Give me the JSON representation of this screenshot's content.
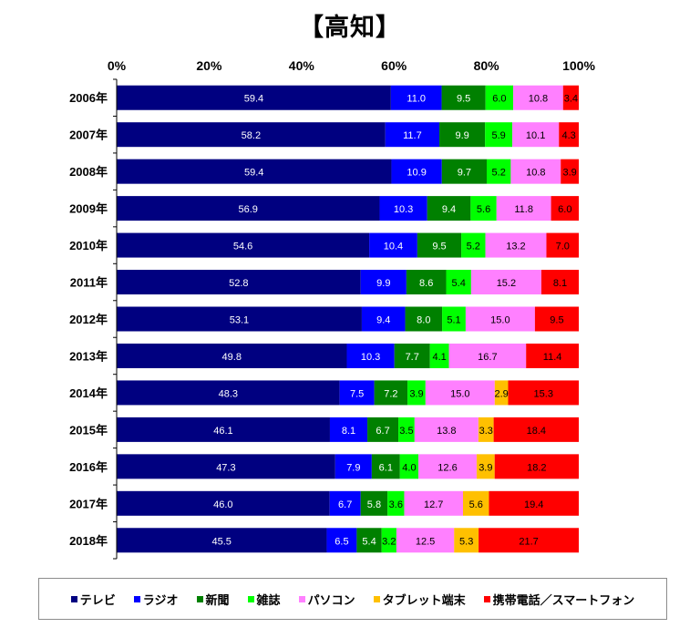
{
  "chart_data": {
    "type": "bar",
    "orientation": "horizontal",
    "stacked": true,
    "normalized": true,
    "title": "【高知】",
    "xlim": [
      0,
      100
    ],
    "x_ticks": [
      "0%",
      "20%",
      "40%",
      "60%",
      "80%",
      "100%"
    ],
    "legend_position": "bottom",
    "categories": [
      "2006年",
      "2007年",
      "2008年",
      "2009年",
      "2010年",
      "2011年",
      "2012年",
      "2013年",
      "2014年",
      "2015年",
      "2016年",
      "2017年",
      "2018年"
    ],
    "series": [
      {
        "name": "テレビ",
        "color": "#000080",
        "label_color": "#ffffff",
        "values": [
          59.4,
          58.2,
          59.4,
          56.9,
          54.6,
          52.8,
          53.1,
          49.8,
          48.3,
          46.1,
          47.3,
          46.0,
          45.5
        ]
      },
      {
        "name": "ラジオ",
        "color": "#0000ff",
        "label_color": "#ffffff",
        "values": [
          11.0,
          11.7,
          10.9,
          10.3,
          10.4,
          9.9,
          9.4,
          10.3,
          7.5,
          8.1,
          7.9,
          6.7,
          6.5
        ]
      },
      {
        "name": "新聞",
        "color": "#008000",
        "label_color": "#ffffff",
        "values": [
          9.5,
          9.9,
          9.7,
          9.4,
          9.5,
          8.6,
          8.0,
          7.7,
          7.2,
          6.7,
          6.1,
          5.8,
          5.4
        ]
      },
      {
        "name": "雑誌",
        "color": "#00ff00",
        "label_color": "#000000",
        "values": [
          6.0,
          5.9,
          5.2,
          5.6,
          5.2,
          5.4,
          5.1,
          4.1,
          3.9,
          3.5,
          4.0,
          3.6,
          3.2
        ]
      },
      {
        "name": "パソコン",
        "color": "#ff80ff",
        "label_color": "#000000",
        "values": [
          10.8,
          10.1,
          10.8,
          11.8,
          13.2,
          15.2,
          15.0,
          16.7,
          15.0,
          13.8,
          12.6,
          12.7,
          12.5
        ]
      },
      {
        "name": "タブレット端末",
        "color": "#ffc000",
        "label_color": "#000000",
        "values": [
          0,
          0,
          0,
          0,
          0,
          0,
          0,
          0,
          2.9,
          3.3,
          3.9,
          5.6,
          5.3
        ]
      },
      {
        "name": "携帯電話／スマートフォン",
        "color": "#ff0000",
        "label_color": "#000000",
        "values": [
          3.4,
          4.3,
          3.9,
          6.0,
          7.0,
          8.1,
          9.5,
          11.4,
          15.3,
          18.4,
          18.2,
          19.4,
          21.7
        ]
      }
    ]
  }
}
